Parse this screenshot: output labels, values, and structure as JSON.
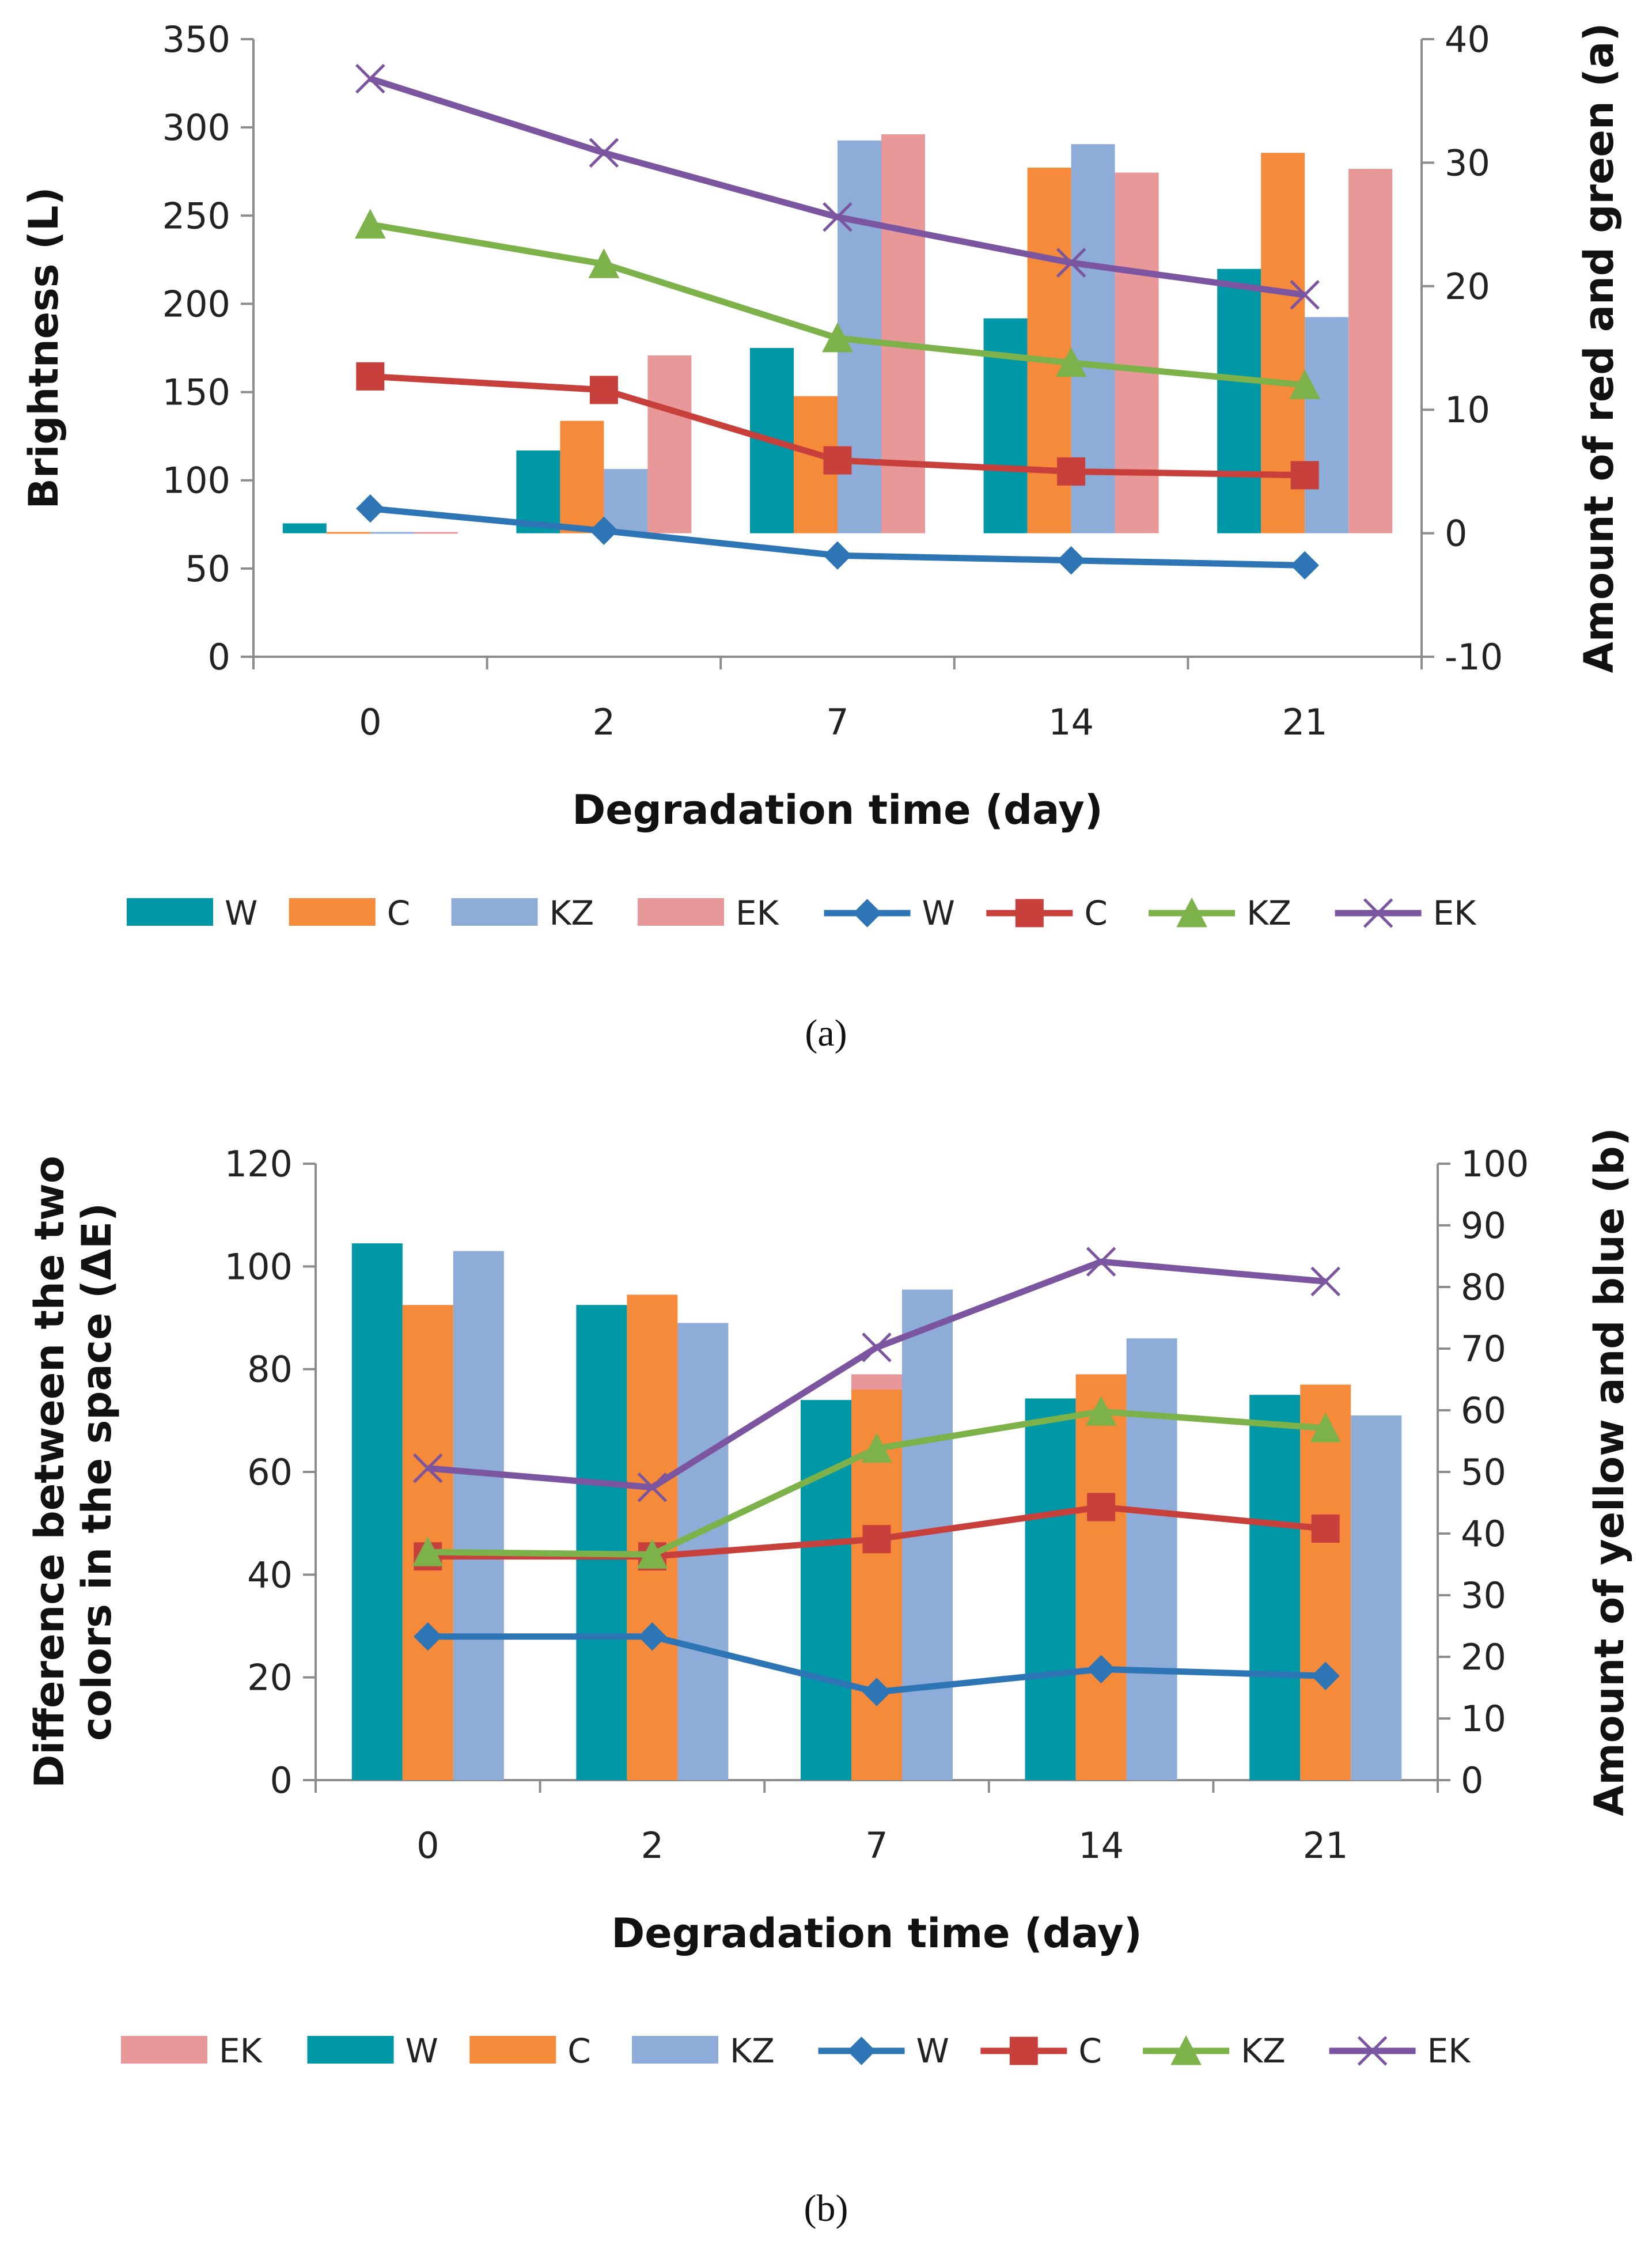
{
  "charts": [
    {
      "panel_label": "(a)",
      "legend": [
        "W",
        "C",
        "KZ",
        "EK",
        "W",
        "C",
        "KZ",
        "EK"
      ]
    },
    {
      "panel_label": "(b)",
      "legend": [
        "EK",
        "W",
        "C",
        "KZ",
        "W",
        "C",
        "KZ",
        "EK"
      ]
    }
  ],
  "chart_data": [
    {
      "type": "bar+line",
      "xlabel": "Degradation time (day)",
      "ylabel": "Brightness (L)",
      "y2label": "Amount of red and green (a)",
      "categories": [
        "0",
        "2",
        "7",
        "14",
        "21"
      ],
      "ylim": [
        0,
        350
      ],
      "yticks": [
        "0",
        "50",
        "100",
        "150",
        "200",
        "250",
        "300",
        "350"
      ],
      "y2lim": [
        -10,
        40
      ],
      "y2ticks": [
        "-10",
        "0",
        "10",
        "20",
        "30",
        "40"
      ],
      "bar_series": [
        {
          "name": "W",
          "color": "#0097A7",
          "values": [
            0.8,
            6.7,
            15,
            17.4,
            21.4
          ]
        },
        {
          "name": "C",
          "color": "#F58A3A",
          "values": [
            0.1,
            9.1,
            11.1,
            29.6,
            30.8
          ]
        },
        {
          "name": "KZ",
          "color": "#8EACD8",
          "values": [
            0.1,
            5.2,
            31.8,
            31.5,
            17.5
          ]
        },
        {
          "name": "EK",
          "color": "#E89898",
          "values": [
            0.1,
            14.4,
            32.3,
            29.2,
            29.5
          ]
        }
      ],
      "line_series": [
        {
          "name": "W",
          "color": "#2E75B6",
          "marker": "diamond",
          "values": [
            2,
            0.2,
            -1.8,
            -2.2,
            -2.6
          ]
        },
        {
          "name": "C",
          "color": "#C8403C",
          "marker": "square",
          "values": [
            12.7,
            11.6,
            5.9,
            5,
            4.7
          ]
        },
        {
          "name": "KZ",
          "color": "#7DB24A",
          "marker": "triangle",
          "values": [
            25,
            21.8,
            15.8,
            13.8,
            12
          ]
        },
        {
          "name": "EK",
          "color": "#7B55A0",
          "marker": "x",
          "values": [
            36.8,
            30.8,
            25.6,
            21.9,
            19.3
          ]
        }
      ]
    },
    {
      "type": "bar+line",
      "xlabel": "Degradation time (day)",
      "ylabel": "Difference between the two colors in the space (ΔE)",
      "ylabel_lines": [
        "Difference between the two",
        "colors in the space (ΔE)"
      ],
      "y2label": "Amount of yellow and blue (b)",
      "categories": [
        "0",
        "2",
        "7",
        "14",
        "21"
      ],
      "ylim": [
        0,
        120
      ],
      "yticks": [
        "0",
        "20",
        "40",
        "60",
        "80",
        "100",
        "120"
      ],
      "y2lim": [
        0,
        100
      ],
      "y2ticks": [
        "0",
        "10",
        "20",
        "30",
        "40",
        "50",
        "60",
        "70",
        "80",
        "90",
        "100"
      ],
      "bar_series": [
        {
          "name": "W",
          "color": "#0097A7",
          "values": [
            104.5,
            92.5,
            74,
            74.3,
            75
          ]
        },
        {
          "name": "EK",
          "color": "#E89898",
          "values": [
            0,
            0,
            79,
            0,
            0
          ]
        },
        {
          "name": "C",
          "color": "#F58A3A",
          "values": [
            92.5,
            94.5,
            76,
            79,
            77
          ]
        },
        {
          "name": "KZ",
          "color": "#8EACD8",
          "values": [
            103,
            89,
            95.5,
            86,
            71
          ]
        }
      ],
      "line_series": [
        {
          "name": "W",
          "color": "#2E75B6",
          "marker": "diamond",
          "values": [
            23.3,
            23.3,
            14.3,
            18,
            16.9
          ]
        },
        {
          "name": "C",
          "color": "#C8403C",
          "marker": "square",
          "values": [
            36.3,
            36.3,
            39.1,
            44.3,
            40.8
          ]
        },
        {
          "name": "KZ",
          "color": "#7DB24A",
          "marker": "triangle",
          "values": [
            37,
            36.6,
            53.8,
            59.8,
            57.1
          ]
        },
        {
          "name": "EK",
          "color": "#7B55A0",
          "marker": "x",
          "values": [
            50.6,
            47.5,
            70.2,
            84.1,
            80.9
          ]
        }
      ]
    }
  ]
}
